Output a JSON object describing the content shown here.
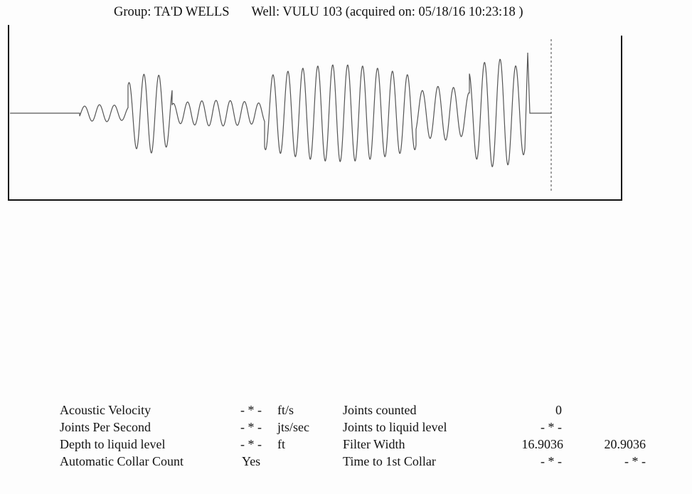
{
  "header": {
    "group_label": "Group:",
    "group_value": "TA'D WELLS",
    "well_label": "Well:",
    "well_value": "VULU 103",
    "acquired_text": "(acquired on: 05/18/16 10:23:18 )"
  },
  "params": {
    "left": [
      {
        "label": "Acoustic Velocity",
        "value": "- * -",
        "unit": "ft/s"
      },
      {
        "label": "Joints Per Second",
        "value": "- * -",
        "unit": "jts/sec"
      },
      {
        "label": "Depth to liquid level",
        "value": "- * -",
        "unit": "ft"
      },
      {
        "label": "Automatic Collar Count",
        "value": "Yes",
        "unit": ""
      }
    ],
    "right": [
      {
        "label": "Joints counted",
        "value1": "0",
        "value2": ""
      },
      {
        "label": "Joints to liquid level",
        "value1": "- * -",
        "value2": ""
      },
      {
        "label": "Filter Width",
        "value1": "16.9036",
        "value2": "20.9036"
      },
      {
        "label": "Time to 1st Collar",
        "value1": "- * -",
        "value2": "- * -"
      }
    ]
  }
}
